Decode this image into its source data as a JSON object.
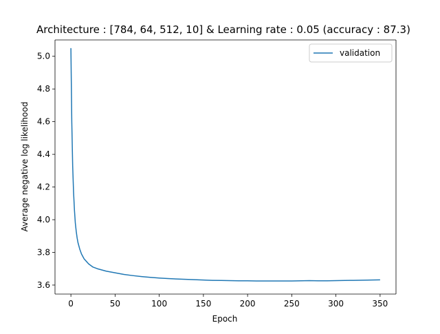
{
  "chart_data": {
    "type": "line",
    "title": "Architecture : [784, 64, 512, 10]  & Learning rate : 0.05 (accuracy : 87.3)",
    "xlabel": "Epoch",
    "ylabel": "Average negative log likelihood",
    "xlim": [
      -18,
      368
    ],
    "ylim": [
      3.545,
      5.1
    ],
    "x_ticks": [
      0,
      50,
      100,
      150,
      200,
      250,
      300,
      350
    ],
    "y_ticks": [
      3.6,
      3.8,
      4.0,
      4.2,
      4.4,
      4.6,
      4.8,
      5.0
    ],
    "x_tick_labels": [
      "0",
      "50",
      "100",
      "150",
      "200",
      "250",
      "300",
      "350"
    ],
    "y_tick_labels": [
      "3.6",
      "3.8",
      "4.0",
      "4.2",
      "4.4",
      "4.6",
      "4.8",
      "5.0"
    ],
    "grid": false,
    "legend_position": "top-right",
    "series": [
      {
        "name": "validation",
        "color": "#1f77b4",
        "x": [
          0,
          1,
          2,
          3,
          4,
          5,
          6,
          7,
          8,
          10,
          12,
          15,
          20,
          25,
          30,
          40,
          50,
          60,
          70,
          80,
          90,
          100,
          110,
          120,
          130,
          140,
          150,
          160,
          170,
          180,
          190,
          200,
          210,
          220,
          230,
          240,
          250,
          260,
          270,
          280,
          290,
          300,
          310,
          320,
          330,
          340,
          350
        ],
        "values": [
          5.05,
          4.6,
          4.33,
          4.17,
          4.06,
          3.98,
          3.93,
          3.89,
          3.86,
          3.82,
          3.79,
          3.76,
          3.73,
          3.71,
          3.7,
          3.685,
          3.675,
          3.665,
          3.658,
          3.652,
          3.647,
          3.643,
          3.64,
          3.637,
          3.635,
          3.633,
          3.631,
          3.629,
          3.628,
          3.627,
          3.626,
          3.626,
          3.625,
          3.625,
          3.625,
          3.625,
          3.625,
          3.626,
          3.627,
          3.626,
          3.626,
          3.627,
          3.628,
          3.629,
          3.63,
          3.631,
          3.632
        ]
      }
    ]
  }
}
